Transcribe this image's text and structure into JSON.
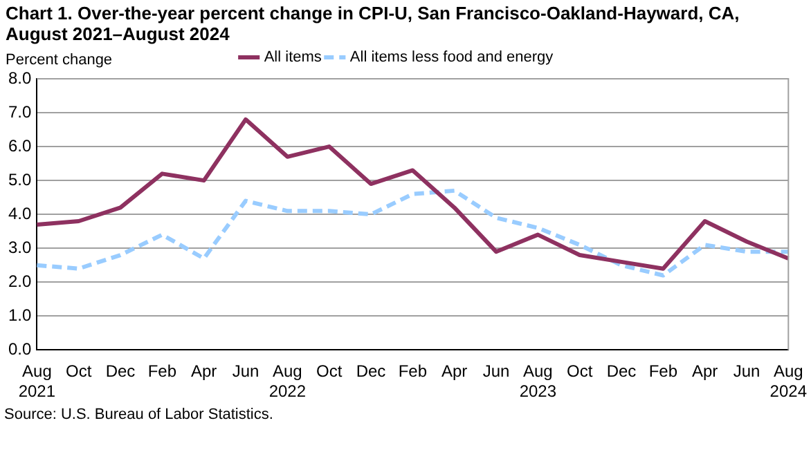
{
  "chart_data": {
    "type": "line",
    "title": "Chart 1. Over-the-year percent change in CPI-U, San Francisco-Oakland-Hayward, CA, August 2021–August 2024",
    "ylabel": "Percent change",
    "annotations": [
      "Source: U.S. Bureau of Labor Statistics."
    ],
    "categories": [
      "Aug 2021",
      "Oct",
      "Dec",
      "Feb",
      "Apr",
      "Jun",
      "Aug 2022",
      "Oct",
      "Dec",
      "Feb",
      "Apr",
      "Jun",
      "Aug 2023",
      "Oct",
      "Dec",
      "Feb",
      "Apr",
      "Jun",
      "Aug 2024"
    ],
    "series": [
      {
        "name": "All items",
        "color": "#8e3160",
        "line_style": "solid",
        "values": [
          3.7,
          3.8,
          4.2,
          5.2,
          5.0,
          6.8,
          5.7,
          6.0,
          4.9,
          5.3,
          4.2,
          2.9,
          3.4,
          2.8,
          2.6,
          2.4,
          3.8,
          3.2,
          2.7
        ]
      },
      {
        "name": "All items less food and energy",
        "color": "#99ccff",
        "line_style": "dashed",
        "values": [
          2.5,
          2.4,
          2.8,
          3.4,
          2.7,
          4.4,
          4.1,
          4.1,
          4.0,
          4.6,
          4.7,
          3.9,
          3.6,
          3.1,
          2.5,
          2.2,
          3.1,
          2.9,
          2.9
        ]
      }
    ],
    "ylim": [
      0,
      8
    ],
    "yticks": [
      {
        "value": 0,
        "label": "0.0"
      },
      {
        "value": 1,
        "label": "1.0"
      },
      {
        "value": 2,
        "label": "2.0"
      },
      {
        "value": 3,
        "label": "3.0"
      },
      {
        "value": 4,
        "label": "4.0"
      },
      {
        "value": 5,
        "label": "5.0"
      },
      {
        "value": 6,
        "label": "6.0"
      },
      {
        "value": 7,
        "label": "7.0"
      },
      {
        "value": 8,
        "label": "8.0"
      }
    ],
    "grid": "y",
    "legend": "top",
    "marker": "none"
  }
}
